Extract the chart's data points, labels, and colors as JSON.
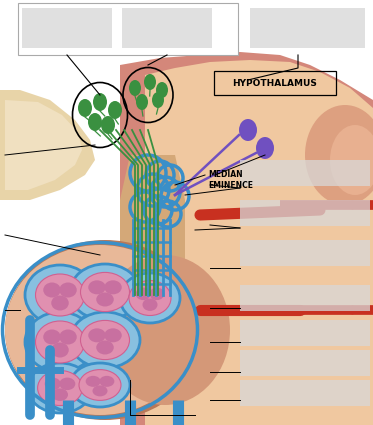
{
  "bg_color": "#ffffff",
  "hypothalamus_label": "HYPOTHALAMUS",
  "median_eminence_label": "MEDIAN\nEMINENCE",
  "skin_outer": "#d4877a",
  "skin_mid": "#e8a888",
  "skin_inner": "#f0c8a0",
  "bone_color": "#e8d4a8",
  "stalk_color": "#d4a878",
  "pit_outer_color": "#c89070",
  "pit_bg_color": "#e8b890",
  "portal_blue": "#3a8fc8",
  "portal_blue_dark": "#2a70a8",
  "nerve_green": "#3a9040",
  "nerve_purple": "#7050c0",
  "artery_red": "#c83020",
  "artery_orange": "#e86040",
  "cell_blue_bg": "#88c0e0",
  "cell_pink": "#e090b0",
  "cell_pink_inner": "#d06090",
  "label_box_color": "#d8d8d8",
  "top_box_color": "#e0e0e0",
  "top_box_outline": "#cccccc"
}
